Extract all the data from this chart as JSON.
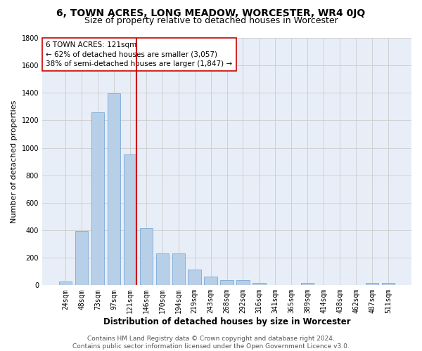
{
  "title": "6, TOWN ACRES, LONG MEADOW, WORCESTER, WR4 0JQ",
  "subtitle": "Size of property relative to detached houses in Worcester",
  "xlabel": "Distribution of detached houses by size in Worcester",
  "ylabel": "Number of detached properties",
  "categories": [
    "24sqm",
    "48sqm",
    "73sqm",
    "97sqm",
    "121sqm",
    "146sqm",
    "170sqm",
    "194sqm",
    "219sqm",
    "243sqm",
    "268sqm",
    "292sqm",
    "316sqm",
    "341sqm",
    "365sqm",
    "389sqm",
    "414sqm",
    "438sqm",
    "462sqm",
    "487sqm",
    "511sqm"
  ],
  "values": [
    25,
    395,
    1260,
    1395,
    950,
    415,
    230,
    230,
    115,
    65,
    38,
    38,
    15,
    0,
    0,
    15,
    0,
    0,
    0,
    15,
    15
  ],
  "bar_color": "#b8cfe8",
  "bar_edgecolor": "#6a9fd0",
  "vline_index": 4,
  "vline_color": "#cc0000",
  "annotation_line1": "6 TOWN ACRES: 121sqm",
  "annotation_line2": "← 62% of detached houses are smaller (3,057)",
  "annotation_line3": "38% of semi-detached houses are larger (1,847) →",
  "annotation_box_color": "#ffffff",
  "annotation_box_edgecolor": "#cc0000",
  "footer_text": "Contains HM Land Registry data © Crown copyright and database right 2024.\nContains public sector information licensed under the Open Government Licence v3.0.",
  "ylim": [
    0,
    1800
  ],
  "yticks": [
    0,
    200,
    400,
    600,
    800,
    1000,
    1200,
    1400,
    1600,
    1800
  ],
  "background_color": "#ffffff",
  "plot_bg_color": "#e8eef7",
  "grid_color": "#cccccc",
  "title_fontsize": 10,
  "subtitle_fontsize": 9,
  "xlabel_fontsize": 8.5,
  "ylabel_fontsize": 8,
  "tick_fontsize": 7,
  "annotation_fontsize": 7.5,
  "footer_fontsize": 6.5
}
